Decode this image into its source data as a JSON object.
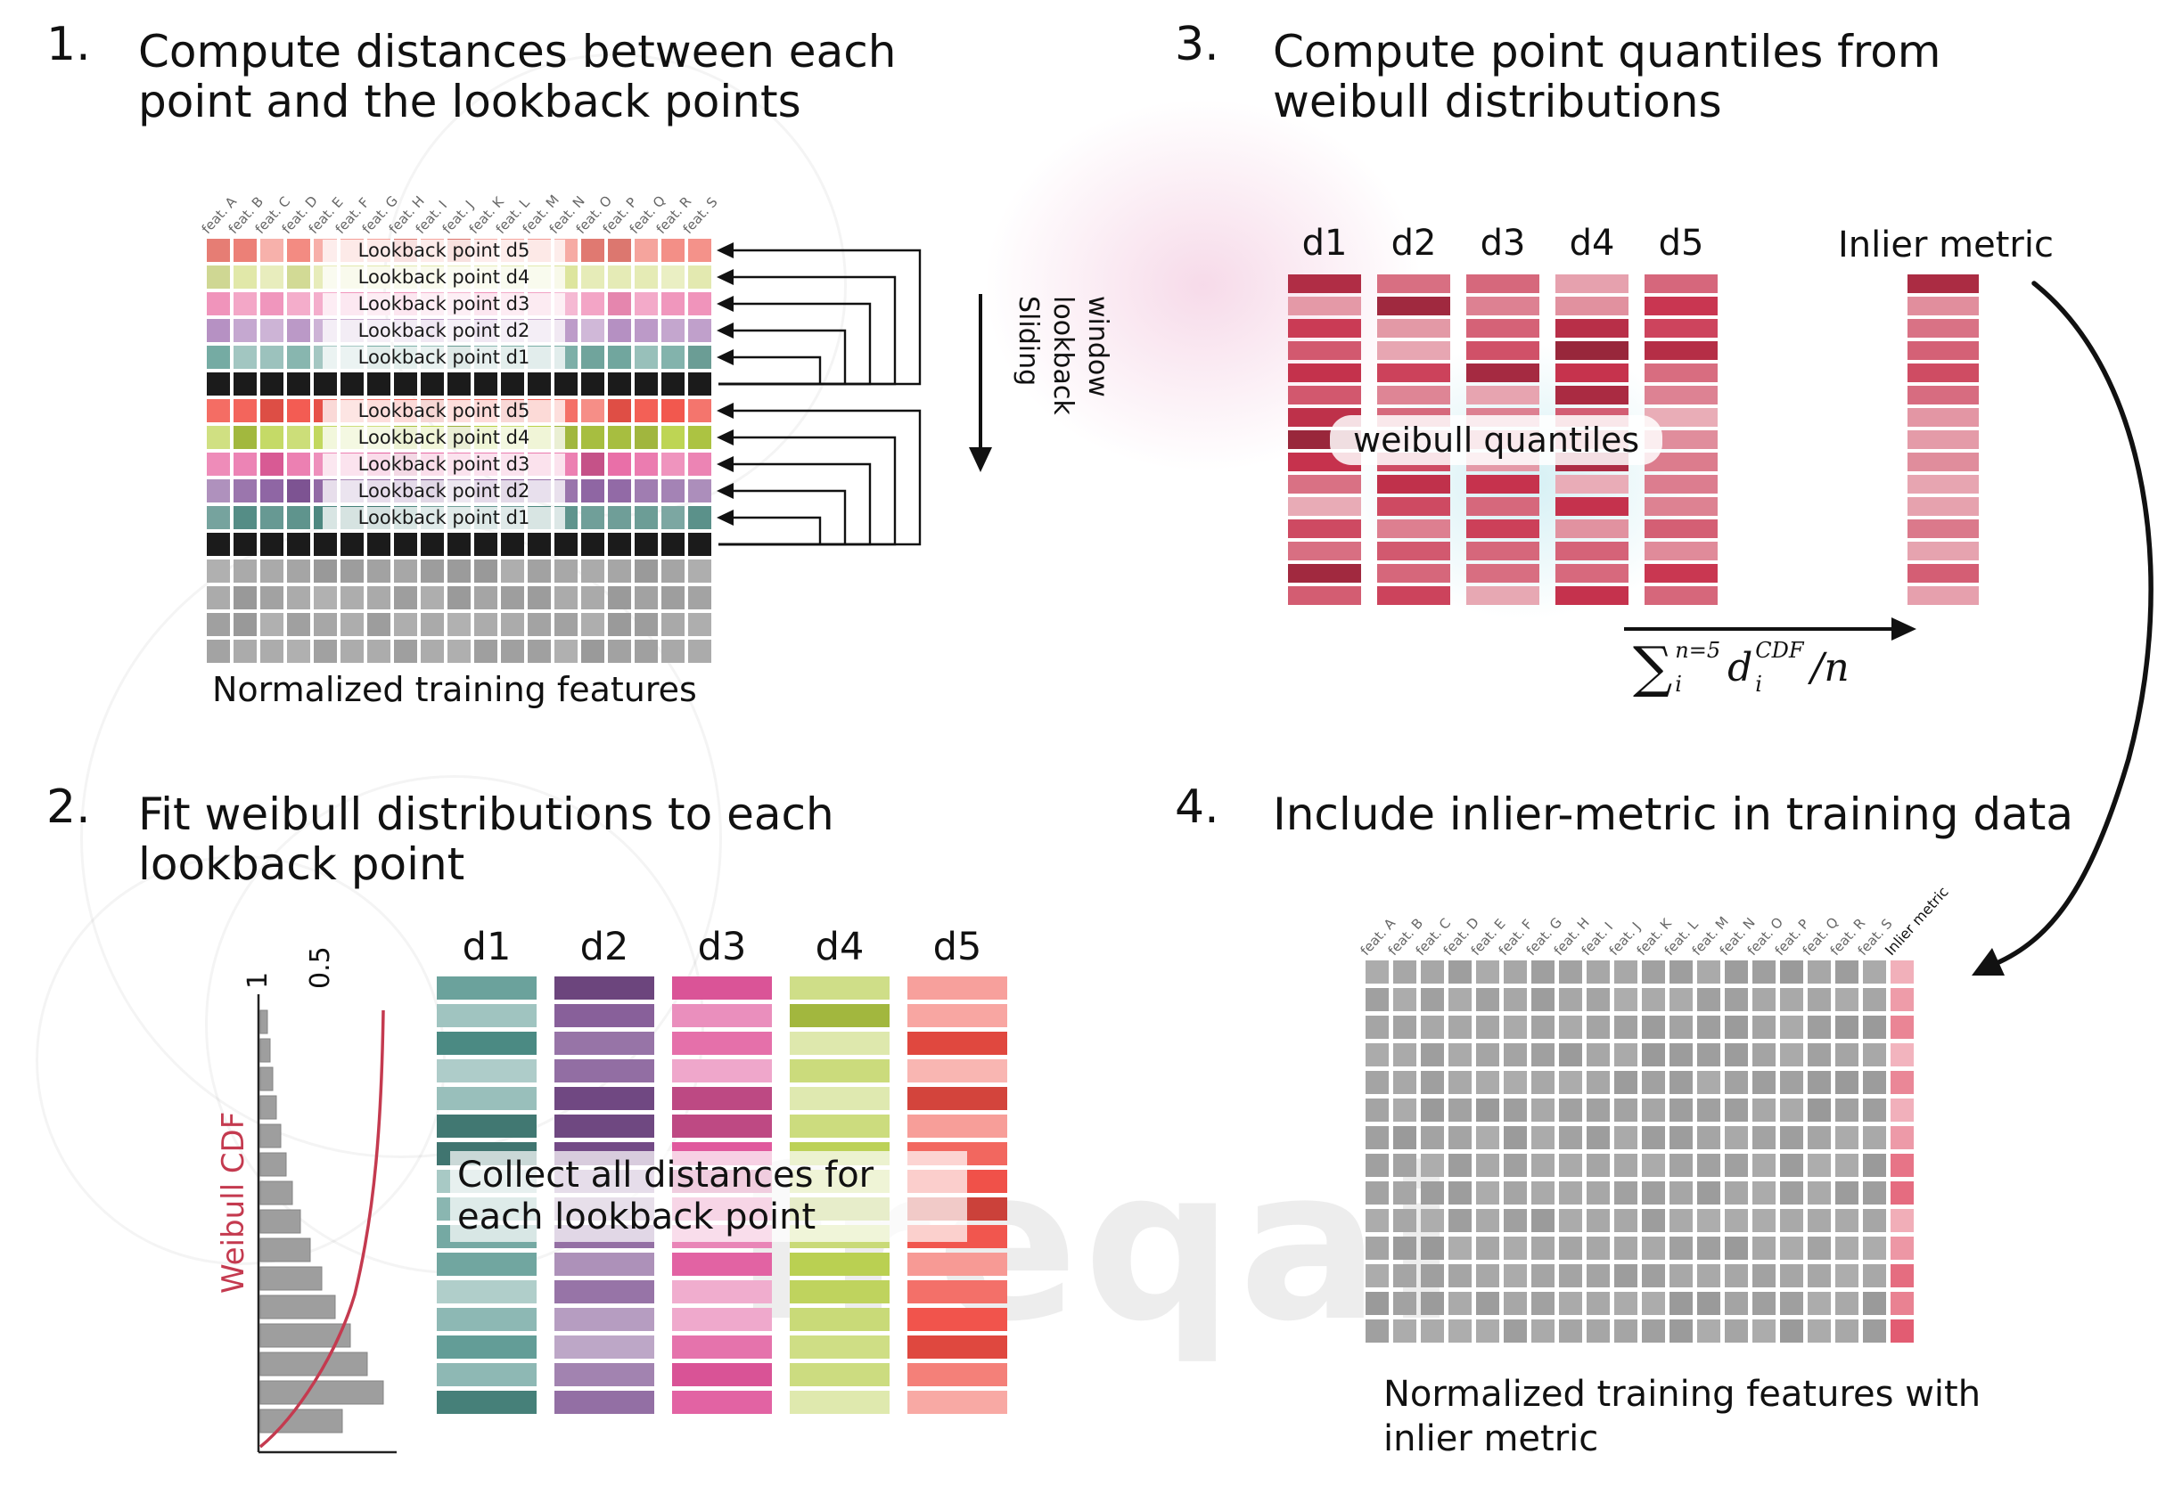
{
  "watermark": {
    "text": "freqai"
  },
  "panel1": {
    "number": "1.",
    "title": "Compute distances between each point and the lookback points",
    "caption": "Normalized training features",
    "sliding_label": "Sliding lookback window",
    "features": [
      "feat. A",
      "feat. B",
      "feat. C",
      "feat. D",
      "feat. E",
      "feat. F",
      "feat. G",
      "feat. H",
      "feat. I",
      "feat. J",
      "feat. K",
      "feat. L",
      "feat. M",
      "feat. N",
      "feat. O",
      "feat. P",
      "feat. Q",
      "feat. R",
      "feat. S"
    ],
    "lookback_labels": [
      "Lookback point d5",
      "Lookback point d4",
      "Lookback point d3",
      "Lookback point d2",
      "Lookback point d1"
    ],
    "grid": {
      "cols": 19,
      "row_colors_window1": [
        "#f2837a",
        "#dce49c",
        "#ef8cb6",
        "#b691c3",
        "#73a9a1"
      ],
      "row_colors_window2": [
        "#f2554b",
        "#b9d247",
        "#e7609f",
        "#85589b",
        "#46837b"
      ],
      "current_row_color": "#1b1b1b",
      "plain_row_color": "#a9a9a9",
      "plain_rows": 4
    }
  },
  "panel2": {
    "number": "2.",
    "title": "Fit weibull distributions to each lookback point",
    "overlay": "Collect all distances for each lookback point",
    "chart": {
      "tick_1": "1",
      "tick_05": "0.5",
      "ylabel": "Weibull CDF",
      "curve_color": "#c43a4f",
      "bar_color": "#9e9e9e",
      "hist": [
        8,
        11,
        14,
        18,
        23,
        29,
        36,
        45,
        56,
        69,
        84,
        101,
        120,
        138,
        92
      ]
    },
    "columns": [
      {
        "label": "d1",
        "color": "#4f918a"
      },
      {
        "label": "d2",
        "color": "#7c5090"
      },
      {
        "label": "d3",
        "color": "#e0569b"
      },
      {
        "label": "d4",
        "color": "#b5cc45"
      },
      {
        "label": "d5",
        "color": "#f04d44"
      }
    ],
    "bars_per_column": 16
  },
  "panel3": {
    "number": "3.",
    "title": "Compute point quantiles from weibull distributions",
    "column_labels": [
      "d1",
      "d2",
      "d3",
      "d4",
      "d5"
    ],
    "bar_color": "#c8334e",
    "bars_per_column": 15,
    "overlay": "weibull quantiles",
    "inlier_label": "Inlier metric",
    "formula": {
      "sum": "∑",
      "sum_sup": "n=5",
      "sum_sub": "i",
      "d": "d",
      "d_sup": "CDF",
      "d_sub": "i",
      "divisor": "/n"
    }
  },
  "panel4": {
    "number": "4.",
    "title": "Include inlier-metric in training data",
    "caption": "Normalized training features with inlier metric",
    "features": [
      "feat. A",
      "feat. B",
      "feat. C",
      "feat. D",
      "feat. E",
      "feat. F",
      "feat. G",
      "feat. H",
      "feat. I",
      "feat. J",
      "feat. K",
      "feat. L",
      "feat. M",
      "feat. N",
      "feat. O",
      "feat. P",
      "feat. Q",
      "feat. R",
      "feat. S"
    ],
    "inlier_col_label": "Inlier metric",
    "grid": {
      "cols": 20,
      "rows": 14,
      "cell_color": "#a6a6a6",
      "inlier_color": "#e25a70"
    }
  }
}
